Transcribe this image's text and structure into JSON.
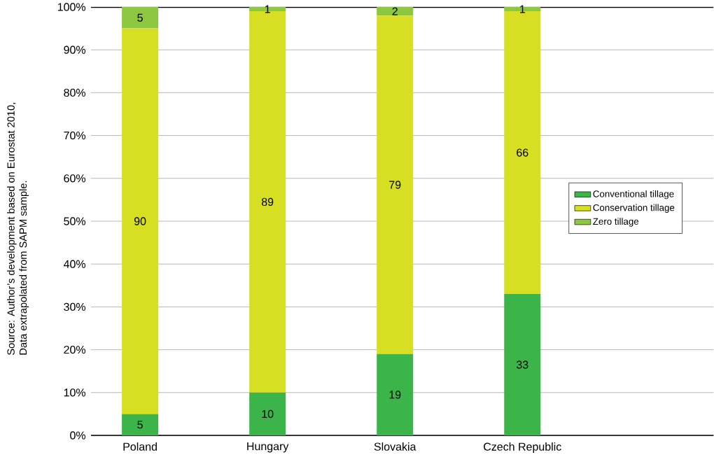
{
  "chart_data": {
    "type": "bar",
    "stacked": true,
    "categories": [
      "Poland",
      "Hungary",
      "Slovakia",
      "Czech Republic"
    ],
    "series": [
      {
        "name": "Conventional tillage",
        "color": "#3bb44a",
        "values": [
          5,
          10,
          19,
          33
        ]
      },
      {
        "name": "Conservation tillage",
        "color": "#d7df23",
        "values": [
          90,
          89,
          79,
          66
        ]
      },
      {
        "name": "Zero tillage",
        "color": "#8dc63f",
        "values": [
          5,
          1,
          2,
          1
        ]
      }
    ],
    "ylim": [
      0,
      100
    ],
    "yticks": [
      {
        "value": 0,
        "label": "0%"
      },
      {
        "value": 10,
        "label": "10%"
      },
      {
        "value": 20,
        "label": "20%"
      },
      {
        "value": 30,
        "label": "30%"
      },
      {
        "value": 40,
        "label": "40%"
      },
      {
        "value": 50,
        "label": "50%"
      },
      {
        "value": 60,
        "label": "60%"
      },
      {
        "value": 70,
        "label": "70%"
      },
      {
        "value": 80,
        "label": "80%"
      },
      {
        "value": 90,
        "label": "90%"
      },
      {
        "value": 100,
        "label": "100%"
      }
    ],
    "grid": "y",
    "legend": "right",
    "data_labels": true,
    "annotations": [
      "Source: Author’s development based on Eurostat 2010,",
      "Data extrapolated from SAPM sample."
    ]
  }
}
